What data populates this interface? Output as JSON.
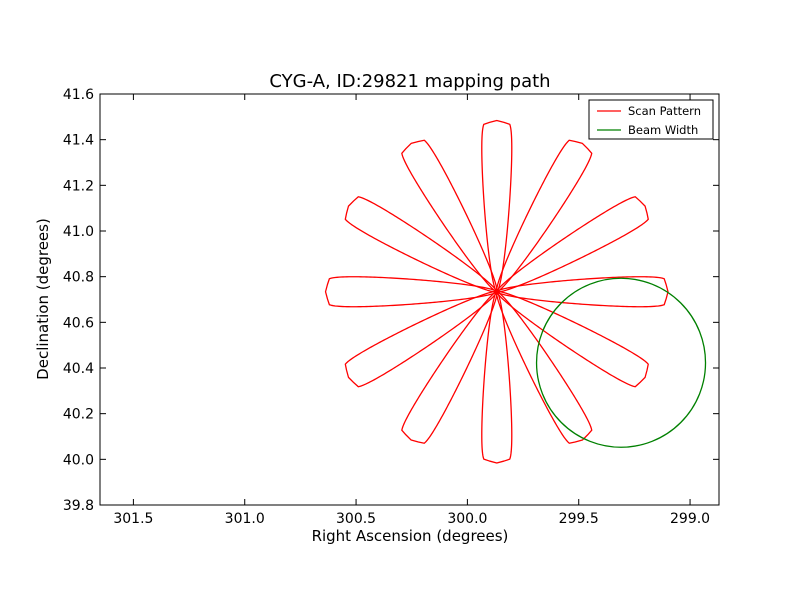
{
  "chart_data": {
    "type": "line",
    "title": "CYG-A, ID:29821 mapping path",
    "xlabel": "Right Ascension (degrees)",
    "ylabel": "Declination (degrees)",
    "xlim": [
      301.65,
      298.87
    ],
    "ylim": [
      39.8,
      41.6
    ],
    "x_inverted": true,
    "xticks": [
      301.5,
      301.0,
      300.5,
      300.0,
      299.5,
      299.0
    ],
    "xtick_labels": [
      "301.5",
      "301.0",
      "300.5",
      "300.0",
      "299.5",
      "299.0"
    ],
    "yticks": [
      39.8,
      40.0,
      40.2,
      40.4,
      40.6,
      40.8,
      41.0,
      41.2,
      41.4,
      41.6
    ],
    "ytick_labels": [
      "39.8",
      "40.0",
      "40.2",
      "40.4",
      "40.6",
      "40.8",
      "41.0",
      "41.2",
      "41.4",
      "41.6"
    ],
    "grid": false,
    "legend_placement": "top-right",
    "series": [
      {
        "name": "Scan Pattern",
        "kind": "rose-scan",
        "color": "#ff0000",
        "center": {
          "ra": 299.868,
          "dec": 40.734
        },
        "petal_count": 12,
        "petal_length_dec": 0.75,
        "petal_width_dec": 0.09,
        "petal_angles_deg": [
          90,
          60,
          30,
          0,
          -30,
          -60,
          -90,
          -120,
          -150,
          180,
          150,
          120
        ]
      },
      {
        "name": "Beam Width",
        "kind": "circle",
        "color": "#008000",
        "center": {
          "ra": 299.31,
          "dec": 40.423
        },
        "radius_dec": 0.37
      }
    ]
  }
}
